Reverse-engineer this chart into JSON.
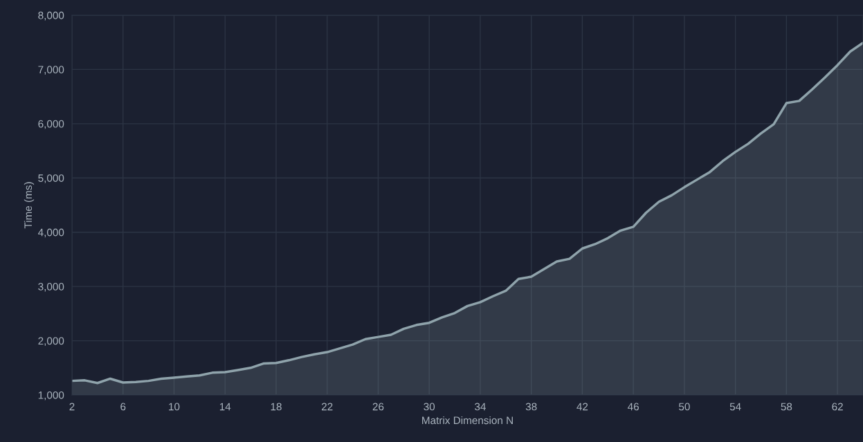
{
  "chart_data": {
    "type": "area",
    "xlabel": "Matrix Dimension N",
    "ylabel": "Time (ms)",
    "x": [
      2,
      3,
      4,
      5,
      6,
      7,
      8,
      9,
      10,
      11,
      12,
      13,
      14,
      15,
      16,
      17,
      18,
      19,
      20,
      21,
      22,
      23,
      24,
      25,
      26,
      27,
      28,
      29,
      30,
      31,
      32,
      33,
      34,
      35,
      36,
      37,
      38,
      39,
      40,
      41,
      42,
      43,
      44,
      45,
      46,
      47,
      48,
      49,
      50,
      51,
      52,
      53,
      54,
      55,
      56,
      57,
      58,
      59,
      60,
      61,
      62,
      63,
      64
    ],
    "series": [
      {
        "color": "#8fa3ab",
        "values": [
          1260,
          1270,
          1220,
          1300,
          1230,
          1240,
          1260,
          1300,
          1320,
          1340,
          1360,
          1410,
          1420,
          1460,
          1500,
          1580,
          1590,
          1640,
          1700,
          1750,
          1790,
          1860,
          1930,
          2030,
          2070,
          2110,
          2220,
          2290,
          2330,
          2430,
          2510,
          2640,
          2710,
          2820,
          2920,
          3140,
          3180,
          3320,
          3460,
          3510,
          3700,
          3780,
          3890,
          4030,
          4100,
          4360,
          4560,
          4680,
          4830,
          4970,
          5110,
          5310,
          5480,
          5630,
          5820,
          5990,
          6380,
          6420,
          6630,
          6850,
          7080,
          7330,
          7490
        ]
      }
    ],
    "xlim": [
      2,
      64
    ],
    "xticks": [
      2,
      6,
      10,
      14,
      18,
      22,
      26,
      30,
      34,
      38,
      42,
      46,
      50,
      54,
      58,
      62
    ],
    "ylim": [
      1000,
      8000
    ],
    "yticks": [
      {
        "value": 1000,
        "label": "1,000"
      },
      {
        "value": 2000,
        "label": "2,000"
      },
      {
        "value": 3000,
        "label": "3,000"
      },
      {
        "value": 4000,
        "label": "4,000"
      },
      {
        "value": 5000,
        "label": "5,000"
      },
      {
        "value": 6000,
        "label": "6,000"
      },
      {
        "value": 7000,
        "label": "7,000"
      },
      {
        "value": 8000,
        "label": "8,000"
      }
    ],
    "grid": true
  }
}
